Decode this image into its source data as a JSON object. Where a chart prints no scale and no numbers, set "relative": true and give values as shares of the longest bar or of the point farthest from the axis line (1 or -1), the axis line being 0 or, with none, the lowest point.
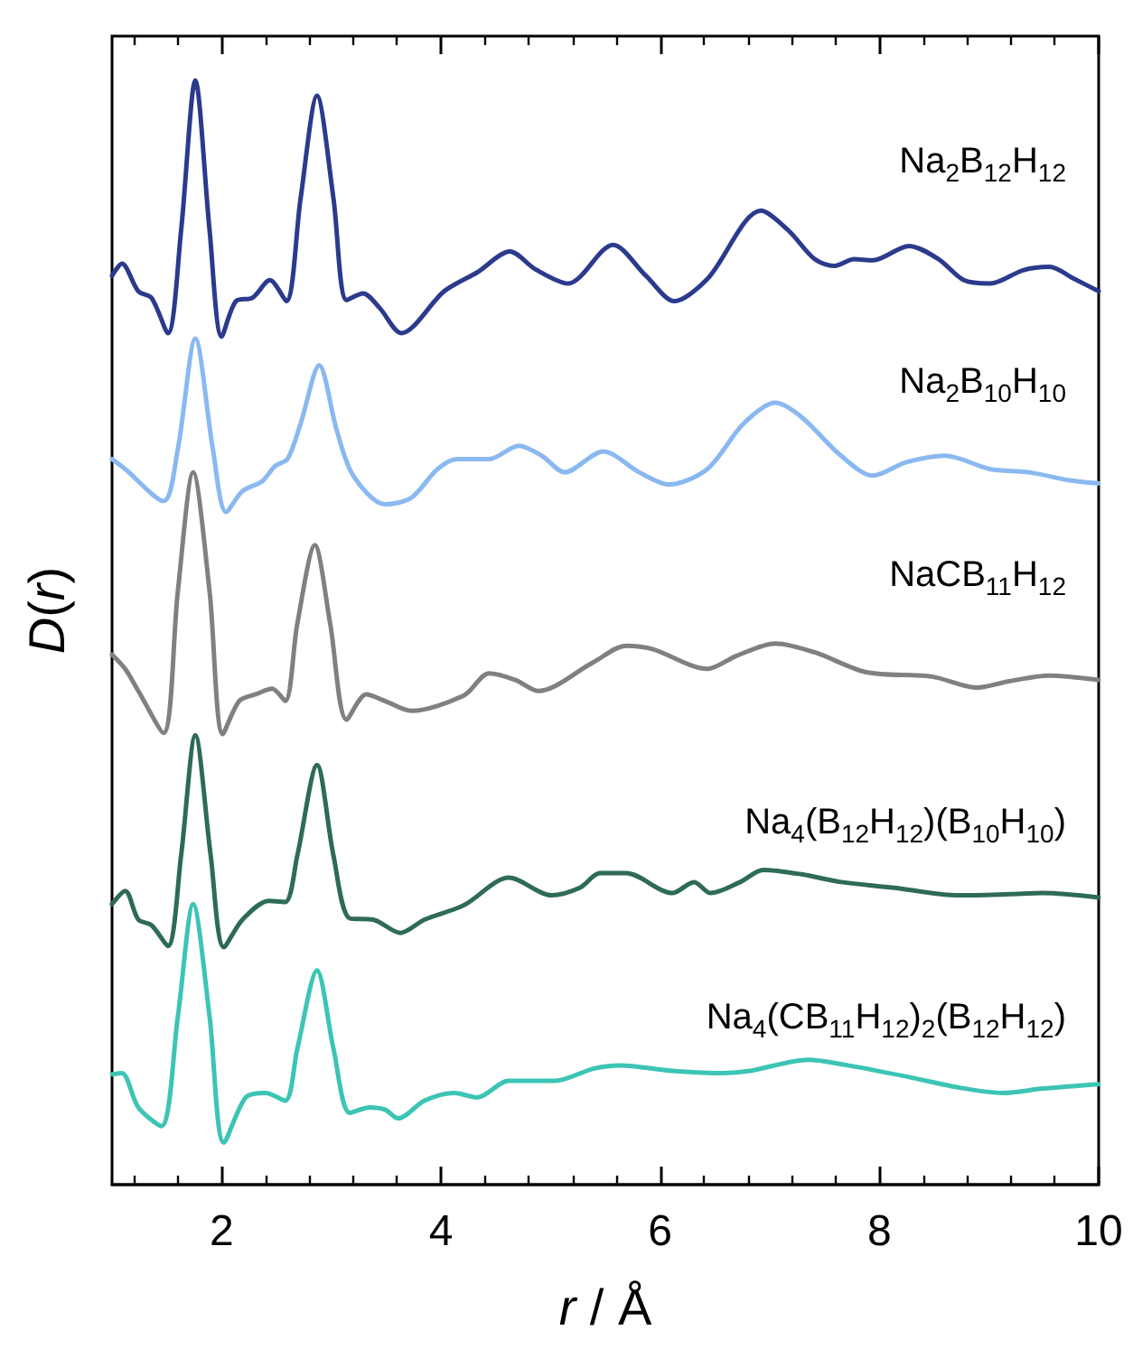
{
  "chart_data": {
    "type": "line",
    "relative": true,
    "xlabel": "r / Å",
    "ylabel": "D(r)",
    "xlim": [
      1,
      10
    ],
    "xticks": [
      {
        "value": 1.2,
        "label": null
      },
      {
        "value": 1.6,
        "label": null
      },
      2,
      {
        "value": 2.4,
        "label": null
      },
      {
        "value": 2.8,
        "label": null
      },
      {
        "value": 3.2,
        "label": null
      },
      {
        "value": 3.6,
        "label": null
      },
      4,
      {
        "value": 4.4,
        "label": null
      },
      {
        "value": 4.8,
        "label": null
      },
      {
        "value": 5.2,
        "label": null
      },
      {
        "value": 5.6,
        "label": null
      },
      6,
      {
        "value": 6.4,
        "label": null
      },
      {
        "value": 6.8,
        "label": null
      },
      {
        "value": 7.2,
        "label": null
      },
      {
        "value": 7.6,
        "label": null
      },
      8,
      {
        "value": 8.4,
        "label": null
      },
      {
        "value": 8.8,
        "label": null
      },
      {
        "value": 9.2,
        "label": null
      },
      {
        "value": 9.6,
        "label": null
      },
      10
    ],
    "tick_labels": "x",
    "grid": false,
    "legend": false,
    "marker": "none",
    "line_style": "solid",
    "series": [
      {
        "name": "Na$_{2}$B$_{12}$H$_{12}$",
        "color": "#2b3a8c",
        "x": [
          1.0,
          1.09,
          1.24,
          1.36,
          1.51,
          1.63,
          1.76,
          1.89,
          2.0,
          2.13,
          2.28,
          2.44,
          2.59,
          2.72,
          2.87,
          3.02,
          3.14,
          3.29,
          3.44,
          3.64,
          4.03,
          4.33,
          4.63,
          4.86,
          5.16,
          5.57,
          5.87,
          6.13,
          6.43,
          6.92,
          7.17,
          7.41,
          7.59,
          7.77,
          7.94,
          8.27,
          8.54,
          8.77,
          9.01,
          9.31,
          9.55,
          9.78,
          10.0
        ],
        "values": [
          0.823,
          0.834,
          0.809,
          0.803,
          0.771,
          0.864,
          1.0,
          0.864,
          0.768,
          0.8,
          0.803,
          0.819,
          0.8,
          0.893,
          0.986,
          0.893,
          0.801,
          0.807,
          0.794,
          0.771,
          0.809,
          0.826,
          0.845,
          0.829,
          0.816,
          0.851,
          0.823,
          0.8,
          0.82,
          0.882,
          0.864,
          0.838,
          0.832,
          0.838,
          0.837,
          0.85,
          0.838,
          0.819,
          0.816,
          0.828,
          0.831,
          0.82,
          0.809
        ]
      },
      {
        "name": "Na$_{2}$B$_{10}$H$_{10}$",
        "color": "#8ab8f0",
        "x": [
          1.0,
          1.12,
          1.47,
          1.6,
          1.76,
          1.92,
          2.04,
          2.19,
          2.37,
          2.49,
          2.6,
          2.72,
          2.89,
          3.05,
          3.2,
          3.49,
          3.73,
          3.97,
          4.15,
          4.44,
          4.71,
          4.92,
          5.13,
          5.48,
          5.81,
          6.08,
          6.43,
          6.76,
          7.05,
          7.29,
          7.65,
          7.94,
          8.24,
          8.6,
          9.01,
          9.37,
          9.72,
          10.0
        ],
        "values": [
          0.657,
          0.648,
          0.619,
          0.666,
          0.766,
          0.666,
          0.609,
          0.628,
          0.637,
          0.651,
          0.657,
          0.689,
          0.742,
          0.683,
          0.642,
          0.616,
          0.622,
          0.648,
          0.657,
          0.657,
          0.669,
          0.66,
          0.645,
          0.664,
          0.645,
          0.634,
          0.648,
          0.689,
          0.708,
          0.695,
          0.66,
          0.642,
          0.654,
          0.66,
          0.648,
          0.645,
          0.638,
          0.635
        ]
      },
      {
        "name": "NaCB$_{11}$H$_{12}$",
        "color": "#808080",
        "x": [
          1.0,
          1.12,
          1.24,
          1.47,
          1.6,
          1.74,
          1.89,
          2.01,
          2.16,
          2.31,
          2.46,
          2.58,
          2.69,
          2.85,
          2.99,
          3.14,
          3.32,
          3.49,
          3.73,
          4.21,
          4.44,
          4.68,
          4.89,
          5.39,
          5.69,
          5.93,
          6.43,
          6.7,
          7.05,
          7.41,
          7.88,
          8.48,
          8.89,
          9.19,
          9.55,
          10.0
        ],
        "values": [
          0.48,
          0.467,
          0.447,
          0.409,
          0.537,
          0.645,
          0.537,
          0.408,
          0.438,
          0.444,
          0.449,
          0.438,
          0.508,
          0.579,
          0.508,
          0.421,
          0.444,
          0.438,
          0.429,
          0.443,
          0.463,
          0.457,
          0.447,
          0.473,
          0.488,
          0.485,
          0.467,
          0.479,
          0.49,
          0.482,
          0.464,
          0.46,
          0.45,
          0.456,
          0.461,
          0.457
        ]
      },
      {
        "name": "Na$_{4}$(B$_{12}$H$_{12}$)(B$_{10}$H$_{10}$)",
        "color": "#2e6b57",
        "x": [
          1.0,
          1.12,
          1.24,
          1.36,
          1.51,
          1.63,
          1.76,
          1.9,
          2.02,
          2.19,
          2.43,
          2.58,
          2.69,
          2.87,
          3.02,
          3.17,
          3.38,
          3.63,
          3.85,
          4.21,
          4.62,
          5.01,
          5.27,
          5.45,
          5.69,
          6.11,
          6.31,
          6.46,
          6.73,
          6.94,
          7.29,
          7.65,
          8.12,
          8.72,
          9.19,
          9.49,
          10.0
        ],
        "values": [
          0.254,
          0.266,
          0.24,
          0.235,
          0.216,
          0.298,
          0.407,
          0.298,
          0.215,
          0.24,
          0.257,
          0.256,
          0.298,
          0.38,
          0.298,
          0.241,
          0.24,
          0.228,
          0.24,
          0.253,
          0.278,
          0.262,
          0.269,
          0.282,
          0.282,
          0.264,
          0.274,
          0.264,
          0.274,
          0.285,
          0.281,
          0.274,
          0.269,
          0.262,
          0.263,
          0.264,
          0.26
        ]
      },
      {
        "name": "Na$_{4}$(CB$_{11}$H$_{12}$)$_{2}$(B$_{12}$H$_{12}$)",
        "color": "#3cc4b4",
        "x": [
          1.0,
          1.09,
          1.24,
          1.45,
          1.6,
          1.74,
          1.89,
          2.02,
          2.22,
          2.4,
          2.58,
          2.69,
          2.87,
          3.02,
          3.17,
          3.35,
          3.49,
          3.61,
          3.85,
          4.12,
          4.33,
          4.62,
          5.04,
          5.39,
          5.63,
          6.11,
          6.58,
          6.82,
          7.35,
          7.71,
          8.24,
          8.72,
          9.13,
          9.49,
          10.0
        ],
        "values": [
          0.1,
          0.101,
          0.07,
          0.053,
          0.152,
          0.254,
          0.152,
          0.038,
          0.079,
          0.083,
          0.076,
          0.123,
          0.194,
          0.123,
          0.065,
          0.07,
          0.068,
          0.06,
          0.076,
          0.083,
          0.079,
          0.094,
          0.094,
          0.105,
          0.108,
          0.103,
          0.101,
          0.103,
          0.113,
          0.108,
          0.098,
          0.088,
          0.083,
          0.087,
          0.091
        ]
      }
    ]
  }
}
